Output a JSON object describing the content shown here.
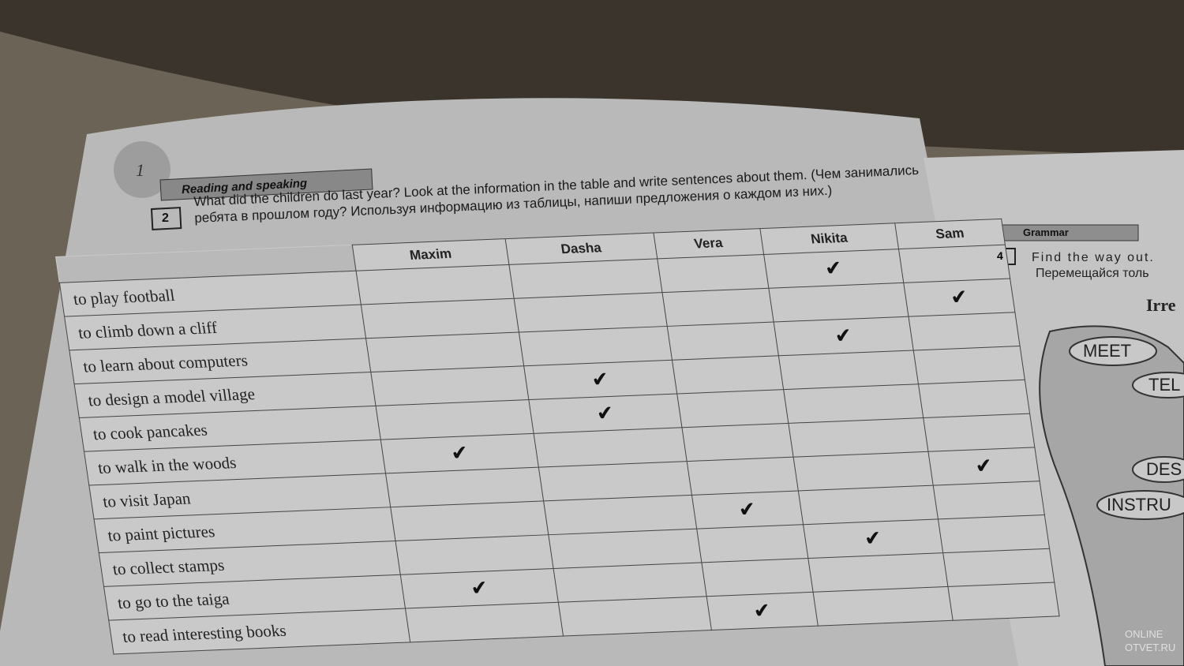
{
  "left_page": {
    "page_number": "1",
    "section": "Reading and speaking",
    "exercise": {
      "number": "2",
      "instruction_en": "What did the children do last year? Look at the information in the table and write sentences about them.",
      "instruction_ru": "(Чем занимались ребята в прошлом году? Используя информацию из таблицы, напиши предложения о каждом из них.)"
    },
    "table": {
      "columns": [
        "Maxim",
        "Dasha",
        "Vera",
        "Nikita",
        "Sam"
      ],
      "rows": [
        {
          "activity": "to play football",
          "done_by": "Nikita"
        },
        {
          "activity": "to climb down a cliff",
          "done_by": "Sam"
        },
        {
          "activity": "to learn about computers",
          "done_by": "Nikita"
        },
        {
          "activity": "to design a model village",
          "done_by": "Dasha"
        },
        {
          "activity": "to cook pancakes",
          "done_by": "Dasha"
        },
        {
          "activity": "to walk in the woods",
          "done_by": "Maxim"
        },
        {
          "activity": "to visit Japan",
          "done_by": "Sam"
        },
        {
          "activity": "to paint pictures",
          "done_by": "Vera"
        },
        {
          "activity": "to collect stamps",
          "done_by": "Nikita"
        },
        {
          "activity": "to go to the taiga",
          "done_by": "Maxim"
        },
        {
          "activity": "to read interesting books",
          "done_by": "Vera"
        }
      ]
    }
  },
  "right_page": {
    "section": "Grammar",
    "exercise": {
      "number": "4",
      "instruction_en": "Find the way out.",
      "instruction_ru": "Перемещайся толь"
    },
    "heading": "Irre",
    "words": [
      "MEET",
      "TEL",
      "DES",
      "INSTRU"
    ]
  },
  "watermark": [
    "ONLINE",
    "OTVET.RU"
  ]
}
